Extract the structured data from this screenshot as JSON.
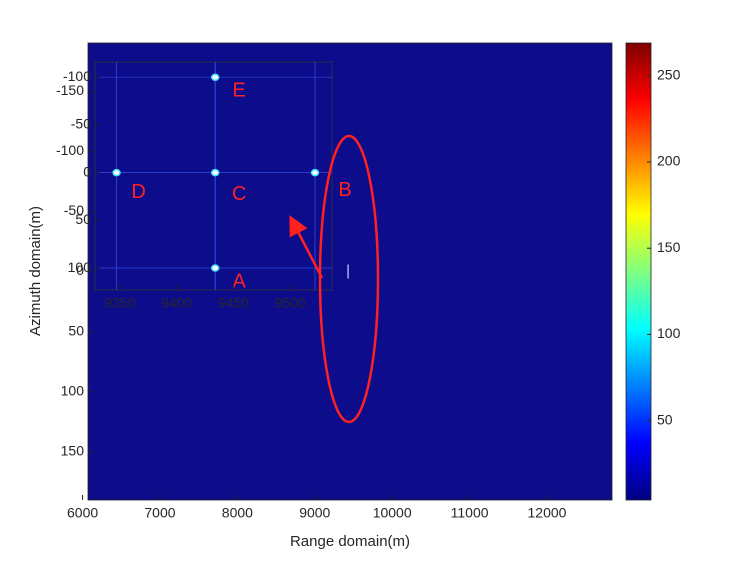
{
  "chart_data": [
    {
      "type": "image",
      "xlabel": "Range domain(m)",
      "ylabel": "Azimuth domain(m)",
      "xlim": [
        6070,
        12840
      ],
      "ylim": [
        -190,
        190
      ],
      "y_reversed": true,
      "xticks": [
        6000,
        7000,
        8000,
        9000,
        10000,
        11000,
        12000
      ],
      "yticks": [
        -150,
        -100,
        -50,
        0,
        50,
        100,
        150
      ],
      "background": "#0d0d8c",
      "targets": {
        "x": [
          9430
        ],
        "y": [
          0
        ]
      },
      "colorbar": {
        "clim": [
          4,
          269
        ],
        "ticks": [
          50,
          100,
          150,
          200,
          250
        ],
        "colormap": [
          "#00007f",
          "#0000ff",
          "#0080ff",
          "#00ffff",
          "#80ff80",
          "#ffff00",
          "#ff8000",
          "#ff0000",
          "#7f0000"
        ]
      }
    },
    {
      "type": "image",
      "xlim": [
        9328,
        9537
      ],
      "ylim": [
        -116,
        123
      ],
      "y_reversed": true,
      "xticks": [
        9350,
        9400,
        9450,
        9500
      ],
      "yticks": [
        -100,
        -50,
        0,
        50,
        100
      ],
      "background": "#0d0d8c",
      "targets": {
        "x": [
          9434,
          9522,
          9434,
          9347,
          9434
        ],
        "y": [
          100,
          0,
          0,
          0,
          -100
        ],
        "labels": [
          "A",
          "B",
          "C",
          "D",
          "E"
        ]
      }
    }
  ]
}
